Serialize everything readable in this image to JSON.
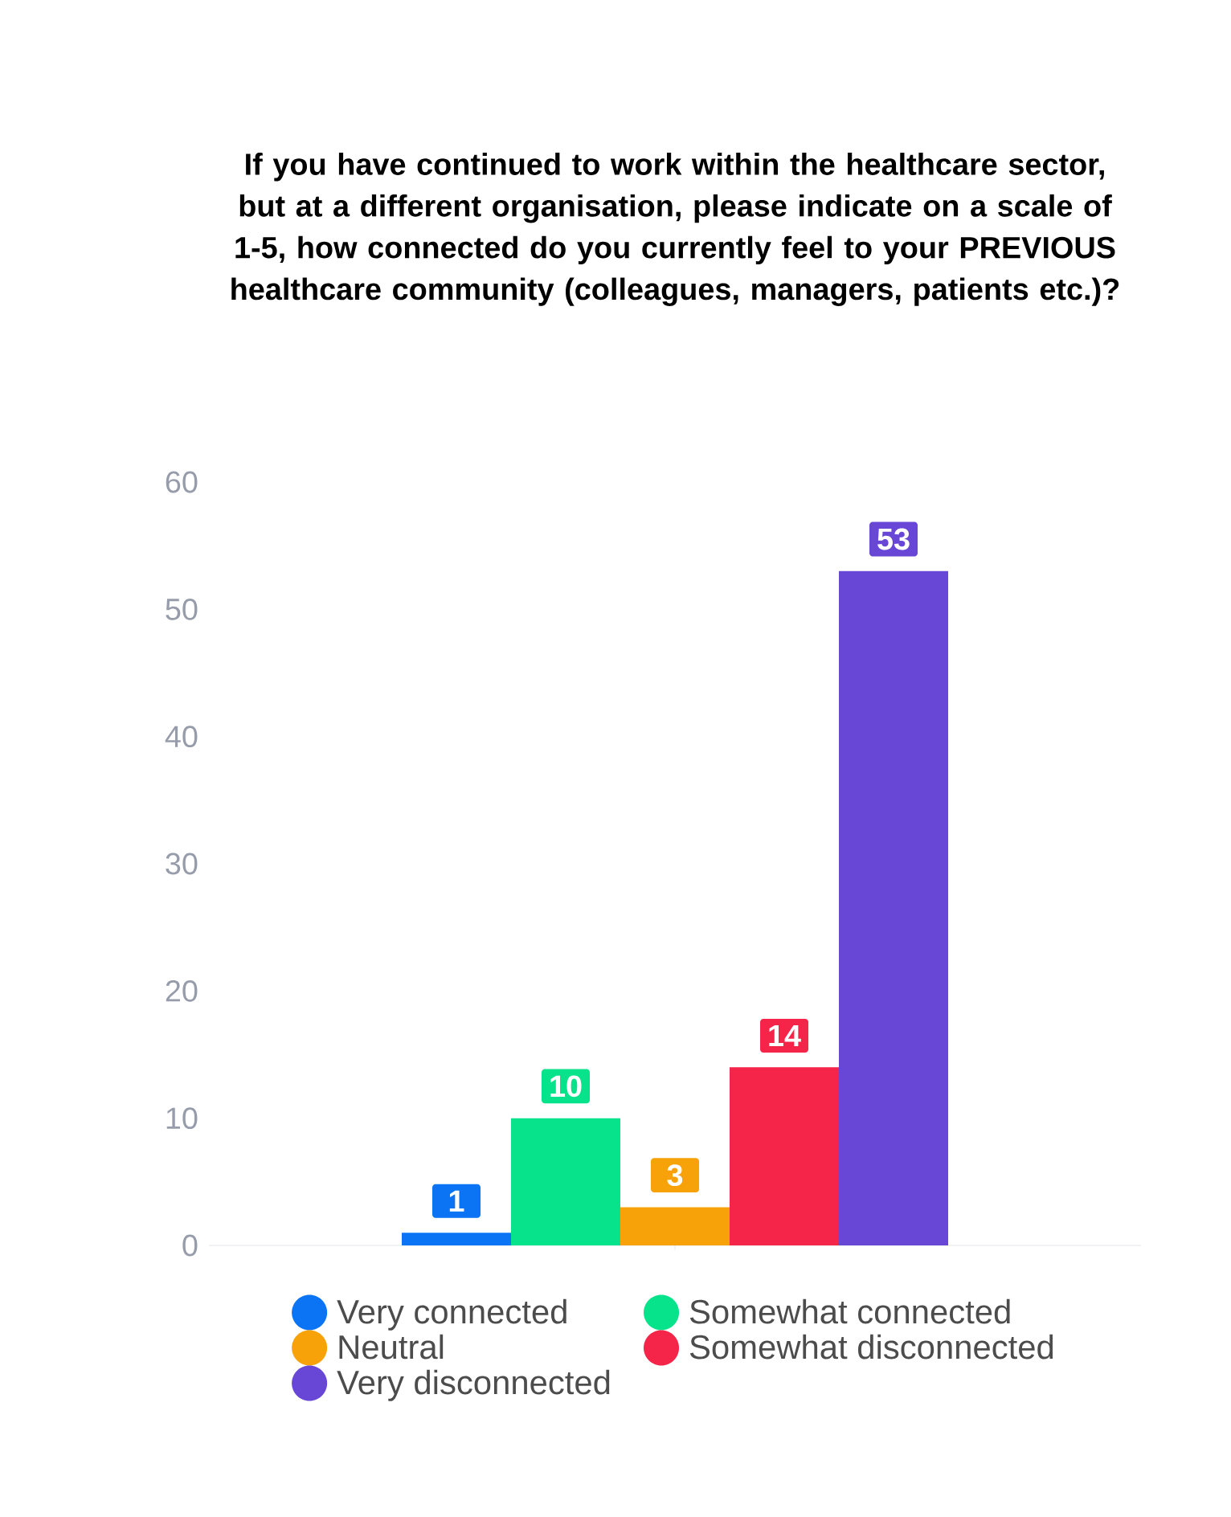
{
  "chart_data": {
    "type": "bar",
    "title": "If you have continued to work within the healthcare sector, but at a different organisation, please indicate on a scale of 1-5, how connected do you currently feel to your PREVIOUS healthcare community (colleagues, managers, patients etc.)?",
    "categories": [
      null
    ],
    "series": [
      {
        "name": "Very connected",
        "color": "#0a74f5",
        "values": [
          1
        ]
      },
      {
        "name": "Somewhat connected",
        "color": "#06e38a",
        "values": [
          10
        ]
      },
      {
        "name": "Neutral",
        "color": "#f8a20a",
        "values": [
          3
        ]
      },
      {
        "name": "Somewhat disconnected",
        "color": "#f5254a",
        "values": [
          14
        ]
      },
      {
        "name": "Very disconnected",
        "color": "#6846d6",
        "values": [
          53
        ]
      }
    ],
    "ylim": [
      0,
      60
    ],
    "yticks": [
      0,
      10,
      20,
      30,
      40,
      50,
      60
    ],
    "data_labels": true,
    "legend": "bottom"
  }
}
